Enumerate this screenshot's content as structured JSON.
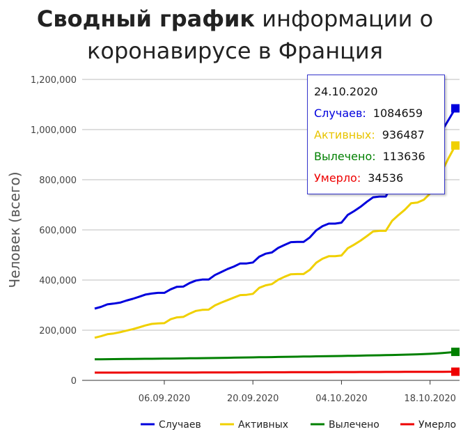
{
  "title": {
    "bold": "Сводный график",
    "rest": " информации о коронавирусе в Франция"
  },
  "chart_data": {
    "type": "line",
    "ylabel": "Человек (всего)",
    "xlabel": "",
    "ylim": [
      0,
      1200000
    ],
    "yticks": [
      "0",
      "200,000",
      "400,000",
      "600,000",
      "800,000",
      "1,000,000",
      "1,200,000"
    ],
    "xticks": [
      {
        "label": "06.09.2020",
        "day": 12
      },
      {
        "label": "20.09.2020",
        "day": 26
      },
      {
        "label": "04.10.2020",
        "day": 40
      },
      {
        "label": "18.10.2020",
        "day": 54
      }
    ],
    "x_days": [
      1,
      2,
      3,
      4,
      5,
      6,
      7,
      8,
      9,
      10,
      11,
      12,
      13,
      14,
      15,
      16,
      17,
      18,
      19,
      20,
      21,
      22,
      23,
      24,
      25,
      26,
      27,
      28,
      29,
      30,
      31,
      32,
      33,
      34,
      35,
      36,
      37,
      38,
      39,
      40,
      41,
      42,
      43,
      44,
      45,
      46,
      47,
      48,
      49,
      50,
      51,
      52,
      53,
      54,
      55,
      56,
      57,
      58
    ],
    "grid": true,
    "legend_position": "bottom",
    "series": [
      {
        "name": "Случаев",
        "color": "#0000dd",
        "values": [
          286000,
          293000,
          303000,
          306000,
          310000,
          318000,
          325000,
          333000,
          342000,
          346000,
          349000,
          349000,
          363000,
          373000,
          374000,
          388000,
          398000,
          402000,
          402000,
          420000,
          432000,
          444000,
          454000,
          466000,
          466000,
          470000,
          493000,
          505000,
          510000,
          528000,
          540000,
          551000,
          552000,
          552000,
          570000,
          598000,
          615000,
          625000,
          625000,
          629000,
          660000,
          675000,
          692000,
          712000,
          730000,
          733000,
          733000,
          778000,
          800000,
          822000,
          849000,
          870000,
          885000,
          935000,
          974000,
          1000000,
          1042000,
          1084659
        ]
      },
      {
        "name": "Активных",
        "color": "#f0d000",
        "values": [
          170000,
          176000,
          184000,
          187000,
          192000,
          198000,
          204000,
          211000,
          219000,
          225000,
          227000,
          228000,
          244000,
          251000,
          253000,
          266000,
          277000,
          281000,
          282000,
          299000,
          310000,
          320000,
          330000,
          340000,
          341000,
          345000,
          369000,
          379000,
          384000,
          401000,
          413000,
          423000,
          424000,
          424000,
          441000,
          469000,
          485000,
          495000,
          495000,
          498000,
          527000,
          541000,
          557000,
          575000,
          594000,
          596000,
          596000,
          636000,
          659000,
          680000,
          706000,
          709000,
          720000,
          745000,
          790000,
          840000,
          890000,
          936487
        ]
      },
      {
        "name": "Вылечено",
        "color": "#008000",
        "values": [
          84000,
          84200,
          84500,
          84800,
          85000,
          85200,
          85500,
          85700,
          86000,
          86200,
          86500,
          86700,
          87000,
          87300,
          87600,
          88000,
          88300,
          88600,
          89000,
          89300,
          89700,
          90100,
          90500,
          90900,
          91300,
          91700,
          92100,
          92500,
          92900,
          93300,
          93700,
          94100,
          94500,
          94900,
          95300,
          95700,
          96100,
          96500,
          96900,
          97300,
          97700,
          98100,
          98600,
          99100,
          99600,
          100100,
          100600,
          101200,
          101800,
          102400,
          103100,
          103900,
          104800,
          105900,
          107200,
          108800,
          111000,
          113636
        ]
      },
      {
        "name": "Умерло",
        "color": "#ee0000",
        "values": [
          30700,
          30750,
          30800,
          30850,
          30900,
          30950,
          31000,
          31050,
          31100,
          31150,
          31200,
          31250,
          31300,
          31350,
          31400,
          31450,
          31500,
          31550,
          31600,
          31650,
          31700,
          31750,
          31800,
          31870,
          31940,
          32010,
          32080,
          32150,
          32220,
          32290,
          32360,
          32430,
          32500,
          32570,
          32640,
          32710,
          32780,
          32850,
          32920,
          32990,
          33060,
          33130,
          33200,
          33280,
          33360,
          33440,
          33520,
          33600,
          33680,
          33760,
          33840,
          33920,
          34000,
          34100,
          34200,
          34300,
          34420,
          34536
        ]
      }
    ]
  },
  "tooltip": {
    "date": "24.10.2020",
    "cases_label": "Случаев:",
    "cases_value": "1084659",
    "active_label": "Активных:",
    "active_value": "936487",
    "recovered_label": "Вылечено:",
    "recovered_value": "113636",
    "deaths_label": "Умерло:",
    "deaths_value": "34536"
  }
}
